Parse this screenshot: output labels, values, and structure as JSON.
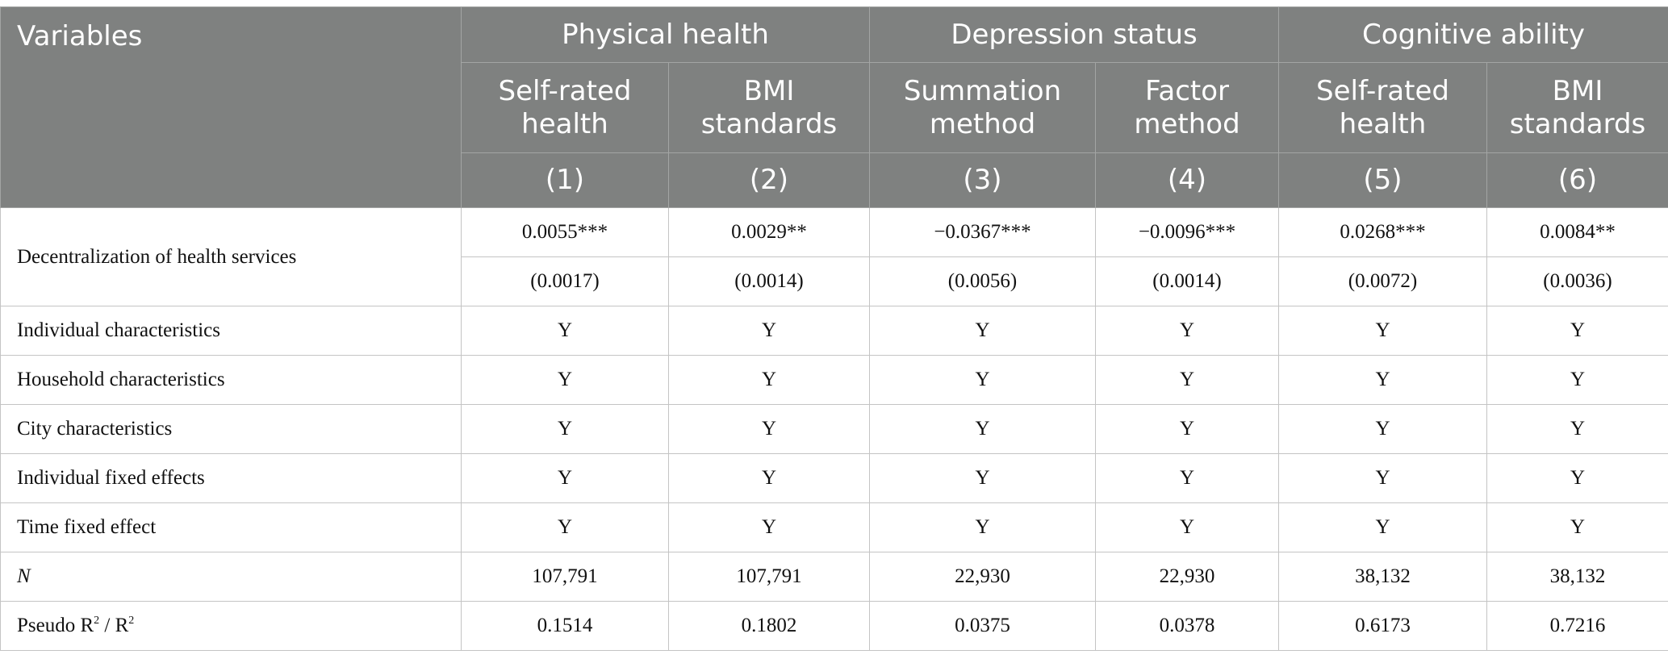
{
  "header": {
    "variables_label": "Variables",
    "groups": [
      {
        "label": "Physical health"
      },
      {
        "label": "Depression status"
      },
      {
        "label": "Cognitive ability"
      }
    ],
    "subheads": [
      {
        "line1": "Self-rated",
        "line2": "health"
      },
      {
        "line1": "BMI",
        "line2": "standards"
      },
      {
        "line1": "Summation",
        "line2": "method"
      },
      {
        "line1": "Factor",
        "line2": "method"
      },
      {
        "line1": "Self-rated",
        "line2": "health"
      },
      {
        "line1": "BMI",
        "line2": "standards"
      }
    ],
    "numbers": [
      "(1)",
      "(2)",
      "(3)",
      "(4)",
      "(5)",
      "(6)"
    ]
  },
  "rows": {
    "decentralization": {
      "label": "Decentralization of health services",
      "coefs": [
        "0.0055***",
        "0.0029**",
        "−0.0367***",
        "−0.0096***",
        "0.0268***",
        "0.0084**"
      ],
      "ses": [
        "(0.0017)",
        "(0.0014)",
        "(0.0056)",
        "(0.0014)",
        "(0.0072)",
        "(0.0036)"
      ]
    },
    "controls": [
      {
        "label": "Individual characteristics",
        "values": [
          "Y",
          "Y",
          "Y",
          "Y",
          "Y",
          "Y"
        ]
      },
      {
        "label": "Household characteristics",
        "values": [
          "Y",
          "Y",
          "Y",
          "Y",
          "Y",
          "Y"
        ]
      },
      {
        "label": "City characteristics",
        "values": [
          "Y",
          "Y",
          "Y",
          "Y",
          "Y",
          "Y"
        ]
      },
      {
        "label": "Individual fixed effects",
        "values": [
          "Y",
          "Y",
          "Y",
          "Y",
          "Y",
          "Y"
        ]
      },
      {
        "label": "Time fixed effect",
        "values": [
          "Y",
          "Y",
          "Y",
          "Y",
          "Y",
          "Y"
        ]
      }
    ],
    "n": {
      "label": "N",
      "values": [
        "107,791",
        "107,791",
        "22,930",
        "22,930",
        "38,132",
        "38,132"
      ]
    },
    "r2": {
      "label_a": "Pseudo R",
      "sup_a": "2",
      "label_b": " / R",
      "sup_b": "2",
      "values": [
        "0.1514",
        "0.1802",
        "0.0375",
        "0.0378",
        "0.6173",
        "0.7216"
      ]
    }
  }
}
